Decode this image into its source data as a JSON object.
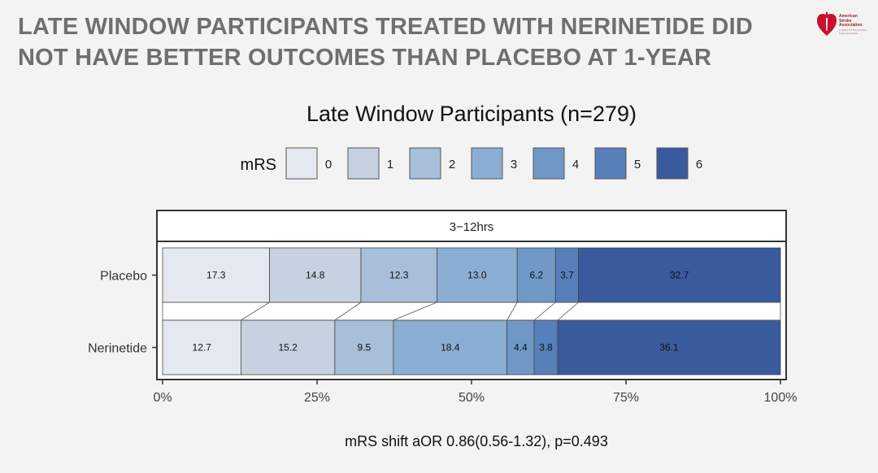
{
  "slide": {
    "headline_line1": "LATE WINDOW PARTICIPANTS TREATED WITH NERINETIDE DID",
    "headline_line2": "NOT HAVE BETTER OUTCOMES THAN PLACEBO AT 1-YEAR",
    "logo": {
      "line1": "American",
      "line2": "Stroke",
      "line3": "Association.",
      "tagline": "A division of the American Heart Association.",
      "icon": "heart-torch-logo-icon",
      "color": "#c8102e"
    }
  },
  "chart_data": {
    "type": "bar",
    "orientation": "horizontal",
    "stacked": true,
    "percent": true,
    "title": "Late Window Participants (n=279)",
    "legend_title": "mRS",
    "legend_position": "top",
    "facet_label": "3−12hrs",
    "categories": [
      "Placebo",
      "Nerinetide"
    ],
    "series": [
      {
        "name": "0",
        "color": "#e4e8f0",
        "values": [
          17.3,
          12.7
        ]
      },
      {
        "name": "1",
        "color": "#c6d2e2",
        "values": [
          14.8,
          15.2
        ]
      },
      {
        "name": "2",
        "color": "#a7bfd9",
        "values": [
          12.3,
          9.5
        ]
      },
      {
        "name": "3",
        "color": "#8aaed3",
        "values": [
          13.0,
          18.4
        ]
      },
      {
        "name": "4",
        "color": "#6f98c7",
        "values": [
          6.2,
          4.4
        ]
      },
      {
        "name": "5",
        "color": "#577fba",
        "values": [
          3.7,
          3.8
        ]
      },
      {
        "name": "6",
        "color": "#3a5a9e",
        "values": [
          32.7,
          36.1
        ]
      }
    ],
    "x_ticks": [
      "0%",
      "25%",
      "50%",
      "75%",
      "100%"
    ],
    "xlim": [
      0,
      100
    ],
    "grid": false,
    "footnote": "mRS shift aOR 0.86(0.56-1.32), p=0.493"
  }
}
